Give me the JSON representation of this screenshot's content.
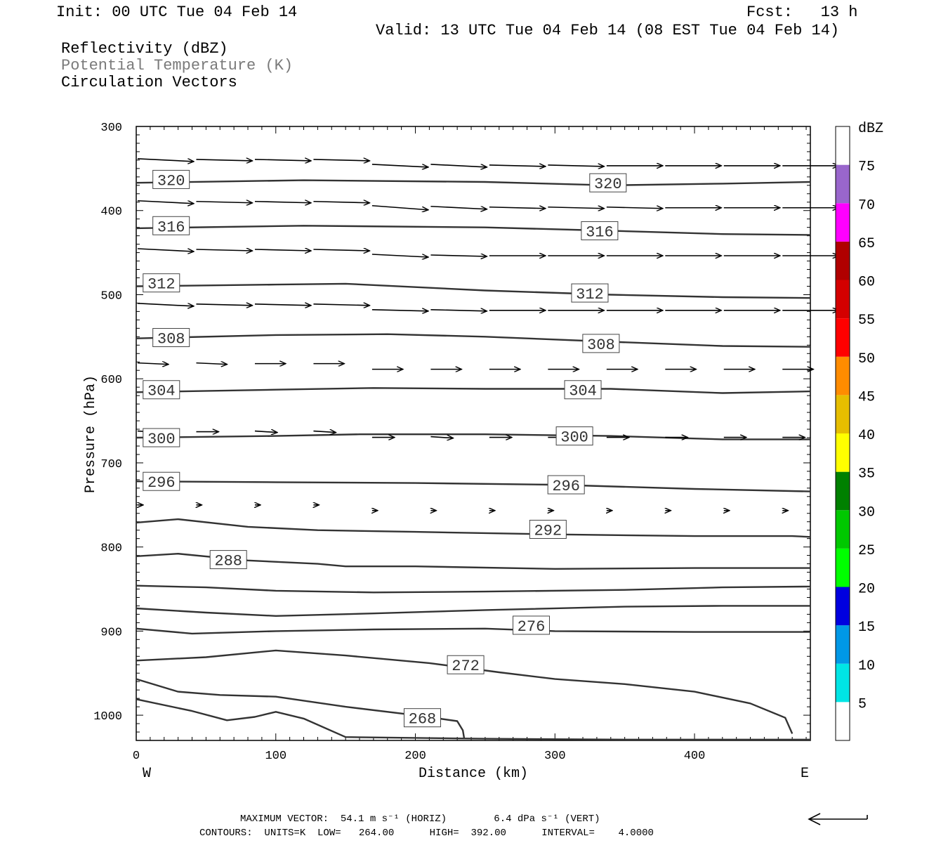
{
  "header": {
    "init": "Init: 00 UTC Tue 04 Feb 14",
    "fcst": "Fcst:   13 h",
    "valid": "Valid: 13 UTC Tue 04 Feb 14 (08 EST Tue 04 Feb 14)"
  },
  "legend": {
    "line1": "Reflectivity (dBZ)",
    "line2": "Potential Temperature (K)",
    "line3": "Circulation Vectors"
  },
  "footer": {
    "max_vector": "MAXIMUM VECTOR:  54.1 m s⁻¹ (HORIZ)        6.4 dPa s⁻¹ (VERT)",
    "contours": "CONTOURS:  UNITS=K  LOW=   264.00      HIGH=  392.00      INTERVAL=    4.0000"
  },
  "chart_data": {
    "type": "line",
    "title": "",
    "xlabel": "Distance (km)",
    "ylabel": "Pressure (hPa)",
    "xlim": [
      0,
      483
    ],
    "ylim": [
      1030,
      300
    ],
    "x_ticks": [
      0,
      100,
      200,
      300,
      400
    ],
    "y_ticks": [
      300,
      400,
      500,
      600,
      700,
      800,
      900,
      1000
    ],
    "x_end_labels": {
      "left": "W",
      "right": "E"
    },
    "contour_color": "#333333",
    "series": [
      {
        "name": "",
        "label": "320",
        "x": [
          0,
          120,
          250,
          340,
          420,
          483
        ],
        "values": [
          367,
          364,
          366,
          370,
          368,
          366
        ],
        "labels_at": [
          [
            25,
            363
          ],
          [
            338,
            367
          ]
        ]
      },
      {
        "name": "",
        "label": "316",
        "x": [
          0,
          120,
          250,
          340,
          420,
          483
        ],
        "values": [
          421,
          418,
          420,
          424,
          428,
          429
        ],
        "labels_at": [
          [
            25,
            418
          ],
          [
            332,
            424
          ]
        ]
      },
      {
        "name": "",
        "label": "312",
        "x": [
          0,
          100,
          150,
          250,
          340,
          420,
          483
        ],
        "values": [
          490,
          488,
          487,
          495,
          500,
          503,
          504
        ],
        "labels_at": [
          [
            18,
            486
          ],
          [
            325,
            498
          ]
        ]
      },
      {
        "name": "",
        "label": "308",
        "x": [
          0,
          100,
          180,
          250,
          340,
          420,
          483
        ],
        "values": [
          552,
          548,
          547,
          550,
          556,
          561,
          562
        ],
        "labels_at": [
          [
            25,
            551
          ],
          [
            333,
            558
          ]
        ]
      },
      {
        "name": "",
        "label": "304",
        "x": [
          0,
          100,
          170,
          250,
          340,
          420,
          483
        ],
        "values": [
          616,
          613,
          611,
          612,
          612,
          617,
          615
        ],
        "labels_at": [
          [
            18,
            613
          ],
          [
            320,
            613
          ]
        ]
      },
      {
        "name": "",
        "label": "300",
        "x": [
          0,
          100,
          160,
          250,
          340,
          420,
          483
        ],
        "values": [
          670,
          668,
          666,
          666,
          668,
          672,
          672
        ],
        "labels_at": [
          [
            18,
            670
          ],
          [
            314,
            668
          ]
        ]
      },
      {
        "name": "",
        "label": "296",
        "x": [
          0,
          100,
          200,
          300,
          400,
          483
        ],
        "values": [
          722,
          723,
          724,
          726,
          731,
          734
        ],
        "labels_at": [
          [
            18,
            722
          ],
          [
            308,
            726
          ]
        ]
      },
      {
        "name": "",
        "label": "292",
        "x": [
          0,
          30,
          80,
          130,
          200,
          300,
          400,
          470,
          483
        ],
        "values": [
          771,
          767,
          776,
          780,
          782,
          785,
          787,
          787,
          788
        ],
        "labels_at": [
          [
            295,
            779
          ]
        ]
      },
      {
        "name": "",
        "label": "288",
        "x": [
          0,
          30,
          80,
          130,
          150,
          200,
          300,
          400,
          483
        ],
        "values": [
          811,
          808,
          816,
          820,
          823,
          823,
          826,
          825,
          825
        ],
        "labels_at": [
          [
            66,
            815
          ]
        ]
      },
      {
        "name": "",
        "label": "",
        "x": [
          0,
          50,
          100,
          170,
          250,
          350,
          420,
          483
        ],
        "values": [
          846,
          848,
          852,
          854,
          853,
          851,
          848,
          847
        ]
      },
      {
        "name": "",
        "label": "",
        "x": [
          0,
          50,
          100,
          170,
          250,
          350,
          420,
          483
        ],
        "values": [
          873,
          878,
          882,
          879,
          875,
          871,
          870,
          870
        ]
      },
      {
        "name": "",
        "label": "276",
        "x": [
          0,
          40,
          100,
          170,
          250,
          300,
          400,
          483
        ],
        "values": [
          897,
          903,
          900,
          898,
          897,
          900,
          901,
          901
        ],
        "labels_at": [
          [
            283,
            893
          ]
        ]
      },
      {
        "name": "",
        "label": "272",
        "x": [
          0,
          50,
          100,
          150,
          210,
          260,
          300,
          350,
          400,
          440,
          465,
          470
        ],
        "values": [
          935,
          931,
          923,
          929,
          938,
          949,
          957,
          963,
          972,
          986,
          1003,
          1022
        ],
        "labels_at": [
          [
            236,
            940
          ]
        ]
      },
      {
        "name": "",
        "label": "268",
        "x": [
          0,
          30,
          60,
          100,
          150,
          200,
          230,
          234,
          235
        ],
        "values": [
          957,
          972,
          976,
          978,
          990,
          1000,
          1007,
          1018,
          1028
        ],
        "labels_at": [
          [
            205,
            1003
          ]
        ]
      },
      {
        "name": "",
        "label": "",
        "x": [
          0,
          40,
          65,
          85,
          100,
          120,
          150,
          250,
          350,
          483
        ],
        "values": [
          981,
          995,
          1006,
          1002,
          996,
          1004,
          1026,
          1028,
          1029,
          1029
        ]
      }
    ],
    "vectors": [
      {
        "p": 340,
        "xs": [
          0,
          42,
          84,
          126,
          168,
          210,
          252,
          294,
          336,
          378,
          420,
          462
        ],
        "u": 1,
        "w": [
          2,
          1,
          1,
          1,
          2,
          2,
          1,
          1,
          0,
          0,
          0,
          0
        ]
      },
      {
        "p": 390,
        "xs": [
          0,
          42,
          84,
          126,
          168,
          210,
          252,
          294,
          336,
          378,
          420,
          462
        ],
        "u": 1,
        "w": [
          2,
          1,
          1,
          1,
          3,
          2,
          1,
          1,
          1,
          0,
          0,
          0
        ]
      },
      {
        "p": 447,
        "xs": [
          0,
          42,
          84,
          126,
          168,
          210,
          252,
          294,
          336,
          378,
          420,
          462
        ],
        "u": 1,
        "w": [
          2,
          1,
          1,
          1,
          2,
          1,
          0,
          0,
          0,
          0,
          0,
          0
        ]
      },
      {
        "p": 512,
        "xs": [
          0,
          42,
          84,
          126,
          168,
          210,
          252,
          294,
          336,
          378,
          420,
          462
        ],
        "u": 1,
        "w": [
          2,
          1,
          1,
          1,
          1,
          1,
          0,
          0,
          0,
          0,
          0,
          0
        ]
      },
      {
        "p": 582,
        "xs": [
          0,
          42,
          84,
          126,
          168,
          210,
          252,
          294,
          336,
          378,
          420,
          462
        ],
        "u": 0.55,
        "w": [
          1,
          1,
          0,
          0,
          0,
          0,
          0,
          0,
          0,
          0,
          0,
          0
        ]
      },
      {
        "p": 663,
        "xs": [
          0,
          42,
          84,
          126,
          168,
          210,
          252,
          294,
          336,
          378,
          420,
          462
        ],
        "u": 0.4,
        "w": [
          1,
          0,
          1,
          1,
          0,
          1,
          0,
          0,
          0,
          0,
          0,
          0
        ]
      },
      {
        "p": 750,
        "xs": [
          0,
          42,
          84,
          126,
          168,
          210,
          252,
          294,
          336,
          378,
          420,
          462
        ],
        "u": 0.1,
        "w": [
          0,
          0,
          0,
          0,
          0,
          0,
          0,
          0,
          0,
          0,
          0,
          0
        ]
      }
    ]
  },
  "colorbar": {
    "title": "dBZ",
    "levels": [
      "5",
      "10",
      "15",
      "20",
      "25",
      "30",
      "35",
      "40",
      "45",
      "50",
      "55",
      "60",
      "65",
      "70",
      "75"
    ],
    "colors": [
      "#ffffff",
      "#00e5e5",
      "#0098e6",
      "#0000e0",
      "#00ff00",
      "#00c800",
      "#008000",
      "#ffff00",
      "#e6be00",
      "#ff8c00",
      "#ff0000",
      "#d40000",
      "#b00000",
      "#ff00ff",
      "#9966cc",
      "#ffffff"
    ]
  },
  "axes": {
    "x_tick_labels": [
      "0",
      "100",
      "200",
      "300",
      "400"
    ],
    "y_tick_labels": [
      "300",
      "400",
      "500",
      "600",
      "700",
      "800",
      "900",
      "1000"
    ],
    "west": "W",
    "east": "E"
  }
}
